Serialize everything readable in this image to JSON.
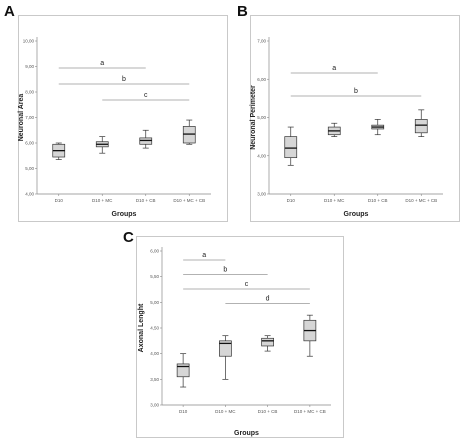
{
  "figure_labels": [
    "A",
    "B",
    "C"
  ],
  "chart_data": [
    {
      "type": "boxplot",
      "panel": "A",
      "xlabel": "Groups",
      "ylabel": "Neuronal Area",
      "ylim": [
        4.0,
        10.0
      ],
      "yticks": [
        "4,00",
        "5,00",
        "6,00",
        "7,00",
        "8,00",
        "9,00",
        "10,00"
      ],
      "categories": [
        "D10",
        "D10 + MC",
        "D10 + CB",
        "D10 + MC + CB"
      ],
      "boxes": [
        {
          "min": 5.35,
          "q1": 5.45,
          "median": 5.7,
          "q3": 5.95,
          "max": 6.0
        },
        {
          "min": 5.6,
          "q1": 5.85,
          "median": 5.95,
          "q3": 6.05,
          "max": 6.25
        },
        {
          "min": 5.8,
          "q1": 5.95,
          "median": 6.1,
          "q3": 6.2,
          "max": 6.5
        },
        {
          "min": 5.95,
          "q1": 6.0,
          "median": 6.35,
          "q3": 6.65,
          "max": 6.9
        }
      ],
      "comparisons": [
        {
          "label": "a",
          "from": 0,
          "to": 2
        },
        {
          "label": "b",
          "from": 0,
          "to": 3
        },
        {
          "label": "c",
          "from": 1,
          "to": 3
        }
      ]
    },
    {
      "type": "boxplot",
      "panel": "B",
      "xlabel": "Groups",
      "ylabel": "Neuronal Perimeter",
      "ylim": [
        3.0,
        7.0
      ],
      "yticks": [
        "3,00",
        "4,00",
        "5,00",
        "6,00",
        "7,00"
      ],
      "categories": [
        "D10",
        "D10 + MC",
        "D10 + CB",
        "D10 + MC + CB"
      ],
      "boxes": [
        {
          "min": 3.75,
          "q1": 3.95,
          "median": 4.2,
          "q3": 4.5,
          "max": 4.75
        },
        {
          "min": 4.5,
          "q1": 4.55,
          "median": 4.65,
          "q3": 4.75,
          "max": 4.85
        },
        {
          "min": 4.55,
          "q1": 4.7,
          "median": 4.75,
          "q3": 4.8,
          "max": 4.95
        },
        {
          "min": 4.5,
          "q1": 4.6,
          "median": 4.8,
          "q3": 4.95,
          "max": 5.2
        }
      ],
      "comparisons": [
        {
          "label": "a",
          "from": 0,
          "to": 2
        },
        {
          "label": "b",
          "from": 0,
          "to": 3
        }
      ]
    },
    {
      "type": "boxplot",
      "panel": "C",
      "xlabel": "Groups",
      "ylabel": "Axonal Lenght",
      "ylim": [
        3.0,
        6.0
      ],
      "yticks": [
        "3,00",
        "3,50",
        "4,00",
        "4,50",
        "5,00",
        "5,50",
        "6,00"
      ],
      "categories": [
        "D10",
        "D10 + MC",
        "D10 + CB",
        "D10 + MC + CB"
      ],
      "boxes": [
        {
          "min": 3.35,
          "q1": 3.55,
          "median": 3.75,
          "q3": 3.8,
          "max": 4.0
        },
        {
          "min": 3.5,
          "q1": 3.95,
          "median": 4.2,
          "q3": 4.25,
          "max": 4.35
        },
        {
          "min": 4.05,
          "q1": 4.15,
          "median": 4.25,
          "q3": 4.3,
          "max": 4.35
        },
        {
          "min": 3.95,
          "q1": 4.25,
          "median": 4.45,
          "q3": 4.65,
          "max": 4.75
        }
      ],
      "comparisons": [
        {
          "label": "a",
          "from": 0,
          "to": 1
        },
        {
          "label": "b",
          "from": 0,
          "to": 2
        },
        {
          "label": "c",
          "from": 0,
          "to": 3
        },
        {
          "label": "d",
          "from": 1,
          "to": 3
        }
      ]
    }
  ]
}
